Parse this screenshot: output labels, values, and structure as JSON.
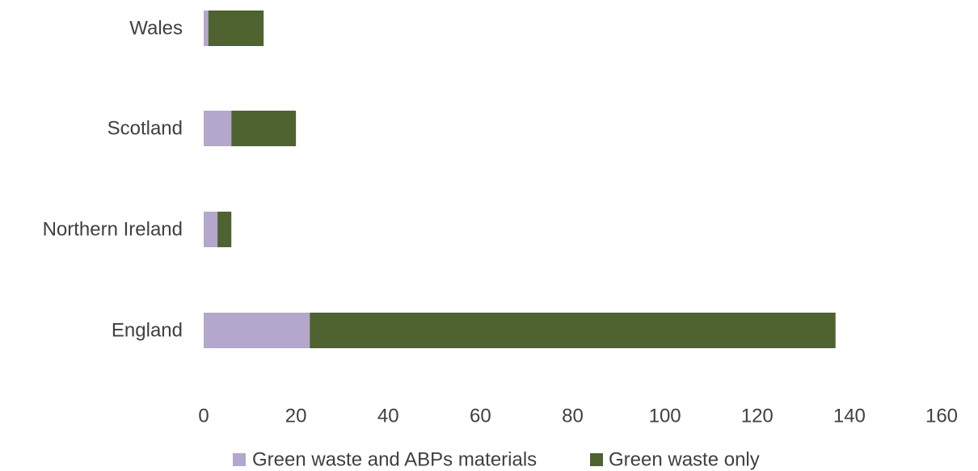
{
  "chart_data": {
    "type": "bar",
    "orientation": "horizontal",
    "stacked": true,
    "categories": [
      "Wales",
      "Scotland",
      "Northern Ireland",
      "England"
    ],
    "series": [
      {
        "name": "Green waste and ABPs materials",
        "color": "#b4a7cc",
        "values": [
          1,
          6,
          3,
          23
        ]
      },
      {
        "name": "Green waste only",
        "color": "#4e6330",
        "values": [
          12,
          14,
          3,
          114
        ]
      }
    ],
    "xlim": [
      0,
      160
    ],
    "xticks": [
      "0",
      "20",
      "40",
      "60",
      "80",
      "100",
      "120",
      "140",
      "160"
    ],
    "grid": false,
    "legend_position": "bottom"
  }
}
